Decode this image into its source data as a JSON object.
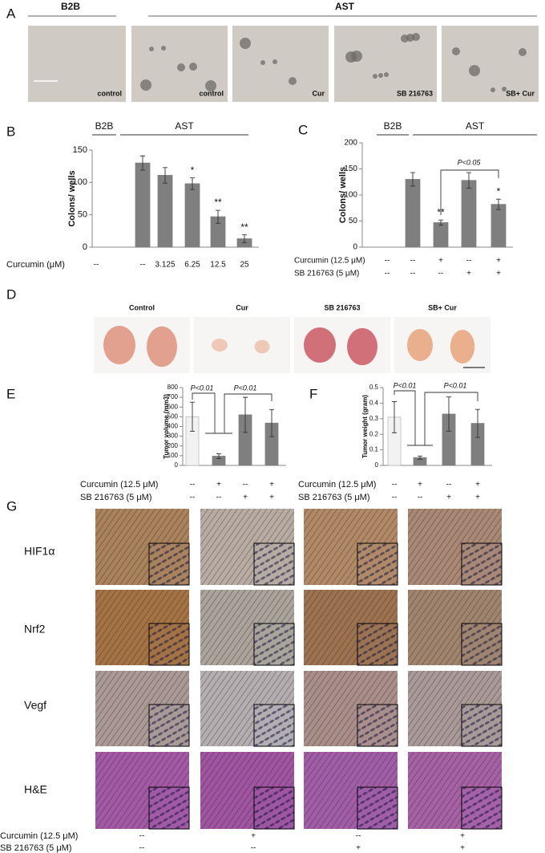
{
  "panels": {
    "A": {
      "letter": "A",
      "groups": [
        "B2B",
        "AST"
      ],
      "images": [
        "control",
        "control",
        "Cur",
        "SB 216763",
        "SB+ Cur"
      ]
    },
    "D": {
      "letter": "D",
      "images": [
        "Control",
        "Cur",
        "SB 216763",
        "SB+ Cur"
      ]
    },
    "G": {
      "letter": "G",
      "rows": [
        "HIF1α",
        "Nrf2",
        "Vegf",
        "H&E"
      ],
      "conditions": [
        {
          "label": "Curcumin (12.5 μM)",
          "values": [
            "--",
            "+",
            "--",
            "+"
          ]
        },
        {
          "label": "SB 216763 (5 μM)",
          "values": [
            "--",
            "--",
            "+",
            "+"
          ]
        }
      ]
    }
  },
  "chart_data": [
    {
      "type": "bar",
      "letter": "B",
      "groups": [
        "B2B",
        "AST"
      ],
      "ylabel": "Colons/ wells",
      "ylim": [
        0,
        150
      ],
      "yticks": [
        0,
        50,
        100,
        150
      ],
      "values": [
        null,
        130,
        111,
        98,
        47,
        13
      ],
      "errors": [
        null,
        11,
        12,
        9,
        10,
        6
      ],
      "significance": [
        null,
        null,
        null,
        "*",
        "**",
        "**"
      ],
      "colors": [
        "#7f7f7f",
        "#7f7f7f",
        "#7f7f7f",
        "#7f7f7f",
        "#7f7f7f",
        "#7f7f7f"
      ],
      "rows": [
        {
          "label": "Curcumin (μM)",
          "values": [
            "--",
            "--",
            "3.125",
            "6.25",
            "12.5",
            "25"
          ]
        }
      ]
    },
    {
      "type": "bar",
      "letter": "C",
      "groups": [
        "B2B",
        "AST"
      ],
      "ylabel": "Colons/ wells",
      "ylim": [
        0,
        200
      ],
      "yticks": [
        0,
        50,
        100,
        150,
        200
      ],
      "values": [
        0,
        130,
        47,
        128,
        82
      ],
      "errors": [
        null,
        13,
        5,
        15,
        10
      ],
      "significance": [
        null,
        null,
        "**",
        null,
        "*"
      ],
      "comparisons": [
        "P<0.05"
      ],
      "colors": [
        "#7f7f7f",
        "#7f7f7f",
        "#7f7f7f",
        "#7f7f7f",
        "#7f7f7f"
      ],
      "rows": [
        {
          "label": "Curcumin (12.5 μM)",
          "values": [
            "--",
            "--",
            "+",
            "--",
            "+"
          ]
        },
        {
          "label": "SB 216763 (5 μM)",
          "values": [
            "--",
            "--",
            "--",
            "+",
            "+"
          ]
        }
      ]
    },
    {
      "type": "bar",
      "letter": "E",
      "ylabel": "Tumor volume (mm3)",
      "ylim": [
        0,
        800
      ],
      "yticks": [
        0,
        100,
        200,
        300,
        400,
        500,
        600,
        700,
        800
      ],
      "values": [
        500,
        95,
        520,
        435
      ],
      "errors": [
        150,
        25,
        180,
        140
      ],
      "comparisons": [
        "P<0.01",
        "P<0.01"
      ],
      "colors": [
        "#f2f2f2",
        "#7f7f7f",
        "#7f7f7f",
        "#7f7f7f"
      ],
      "rows": [
        {
          "label": "Curcumin (12.5 μM)",
          "values": [
            "--",
            "+",
            "--",
            "+"
          ]
        },
        {
          "label": "SB 216763 (5 μM)",
          "values": [
            "--",
            "--",
            "+",
            "+"
          ]
        }
      ]
    },
    {
      "type": "bar",
      "letter": "F",
      "ylabel": "Tumor weight (gram)",
      "ylim": [
        0,
        0.5
      ],
      "yticks": [
        0,
        0.1,
        0.2,
        0.3,
        0.4,
        0.5
      ],
      "values": [
        0.31,
        0.05,
        0.33,
        0.27
      ],
      "errors": [
        0.1,
        0.01,
        0.11,
        0.09
      ],
      "comparisons": [
        "P<0.01",
        "P<0.01"
      ],
      "colors": [
        "#f2f2f2",
        "#7f7f7f",
        "#7f7f7f",
        "#7f7f7f"
      ],
      "rows": [
        {
          "label": "Curcumin (12.5 μM)",
          "values": [
            "--",
            "+",
            "--",
            "+"
          ]
        },
        {
          "label": "SB 216763 (5 μM)",
          "values": [
            "--",
            "--",
            "+",
            "+"
          ]
        }
      ]
    }
  ]
}
